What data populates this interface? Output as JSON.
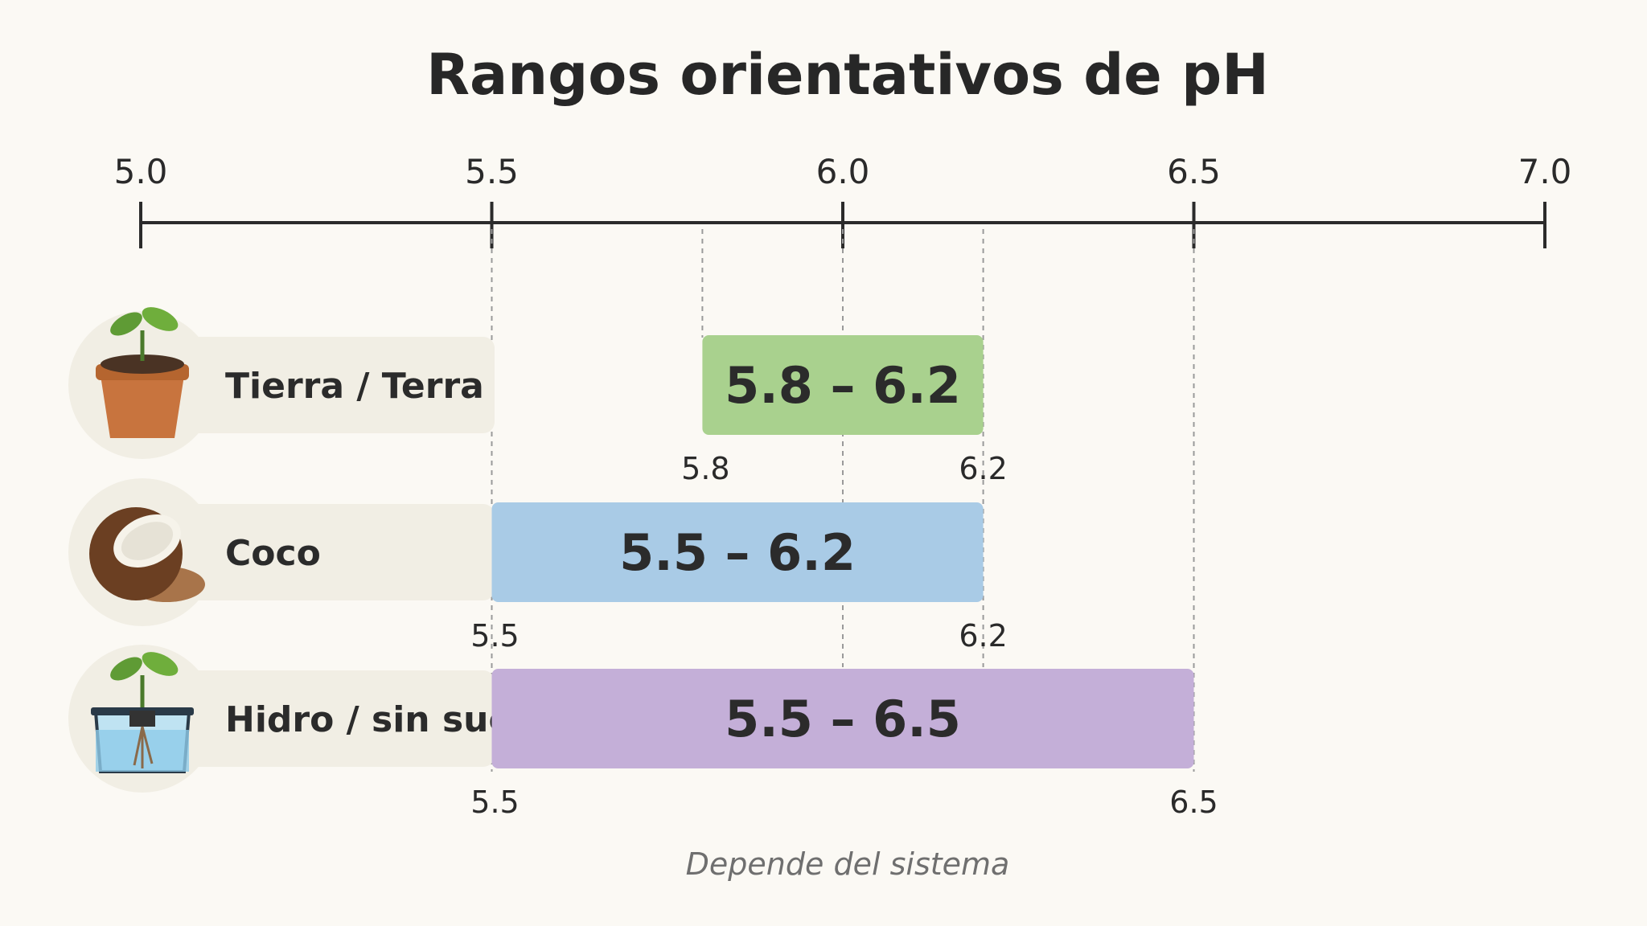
{
  "chart_data": {
    "type": "bar",
    "orientation": "horizontal-range",
    "title": "Rangos orientativos de pH",
    "xlim": [
      5.0,
      7.0
    ],
    "ticks": [
      {
        "value": 5.0,
        "label": "5.0"
      },
      {
        "value": 5.5,
        "label": "5.5"
      },
      {
        "value": 6.0,
        "label": "6.0"
      },
      {
        "value": 6.5,
        "label": "6.5"
      },
      {
        "value": 7.0,
        "label": "7.0"
      }
    ],
    "guides": [
      5.5,
      5.8,
      6.0,
      6.2,
      6.5
    ],
    "series": [
      {
        "label": "Tierra / Terra",
        "icon": "plant-pot-icon",
        "min": 5.8,
        "max": 6.2,
        "range_label": "5.8 – 6.2",
        "min_label": "5.8",
        "max_label": "6.2",
        "color": "#a9d18e"
      },
      {
        "label": "Coco",
        "icon": "coconut-icon",
        "min": 5.5,
        "max": 6.2,
        "range_label": "5.5 – 6.2",
        "min_label": "5.5",
        "max_label": "6.2",
        "color": "#a9cbe6"
      },
      {
        "label": "Hidro / sin suelo",
        "icon": "hydroponic-plant-icon",
        "min": 5.5,
        "max": 6.5,
        "range_label": "5.5 – 6.5",
        "min_label": "5.5",
        "max_label": "6.5",
        "color": "#c4afd8"
      }
    ],
    "footnote": "Depende del sistema",
    "grid": false
  }
}
